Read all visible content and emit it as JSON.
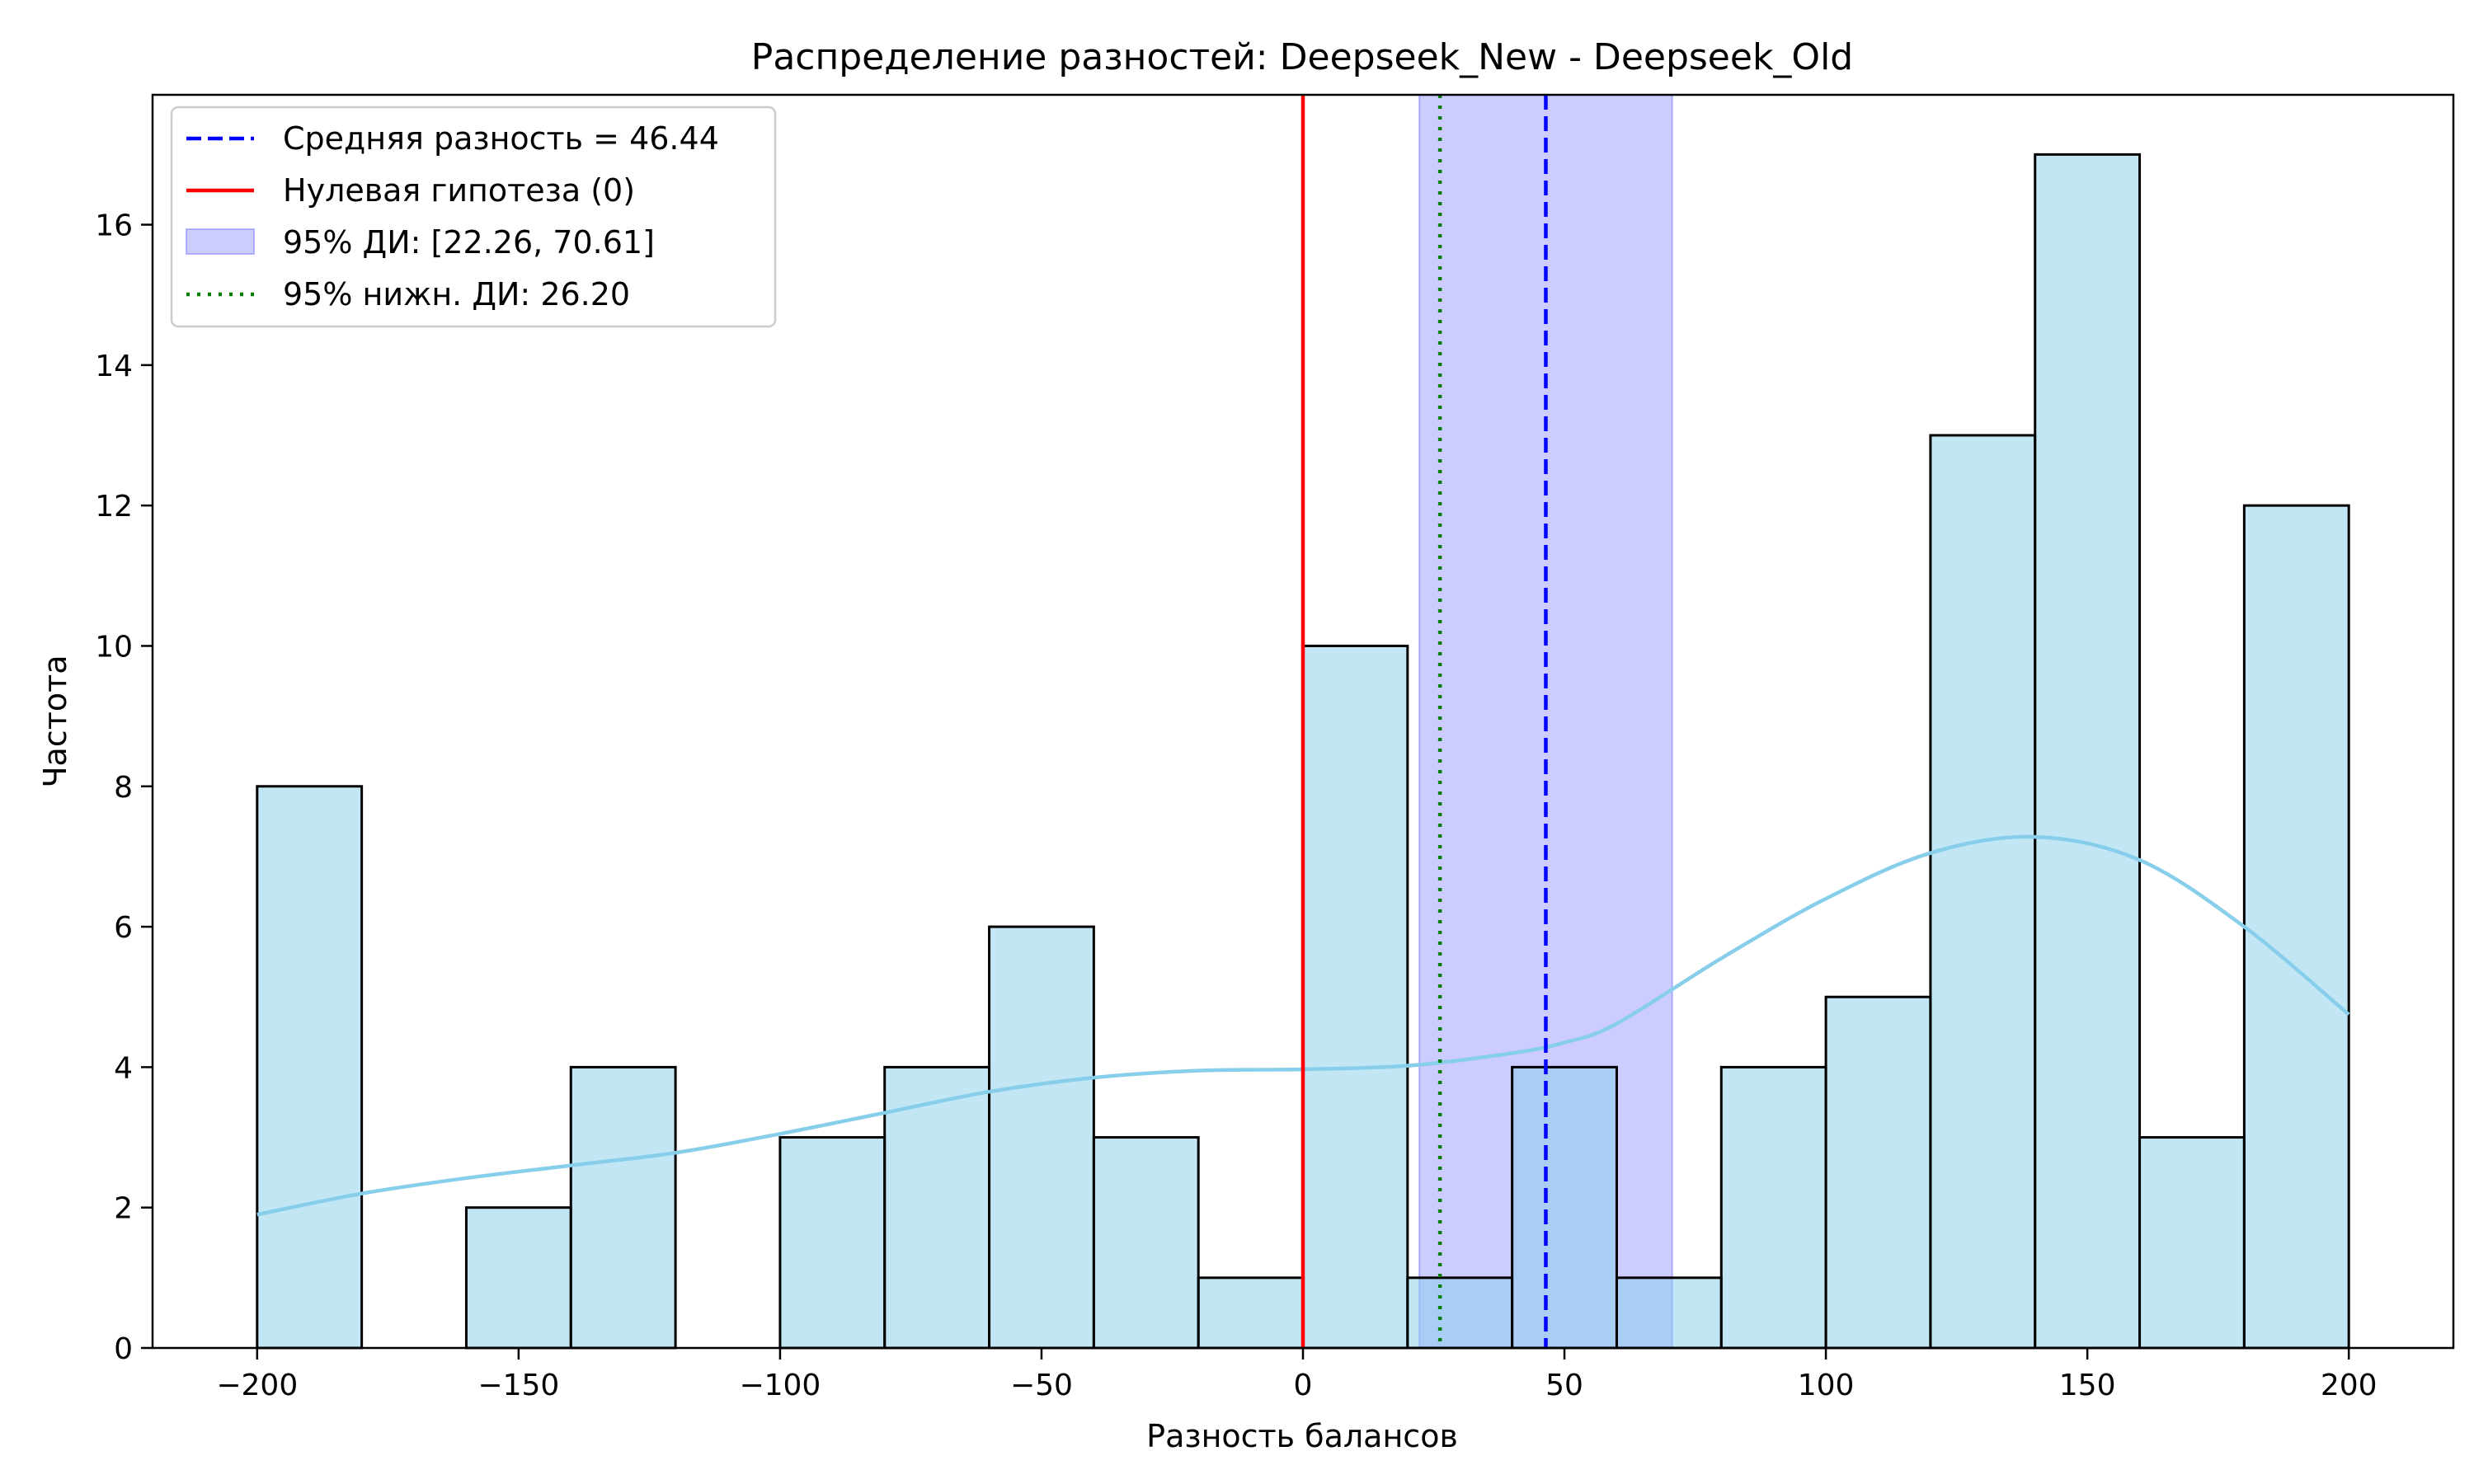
{
  "chart_data": {
    "type": "bar",
    "title": "Распределение разностей: Deepseek_New - Deepseek_Old",
    "xlabel": "Разность балансов",
    "ylabel": "Частота",
    "xlim": [
      -220,
      220
    ],
    "ylim": [
      0,
      17.85
    ],
    "xticks": [
      -200,
      -150,
      -100,
      -50,
      0,
      50,
      100,
      150,
      200
    ],
    "xtick_labels": [
      "−200",
      "−150",
      "−100",
      "−50",
      "0",
      "50",
      "100",
      "150",
      "200"
    ],
    "yticks": [
      0,
      2,
      4,
      6,
      8,
      10,
      12,
      14,
      16
    ],
    "grid": false,
    "legend_position": "top-left",
    "bin_edges": [
      -200,
      -180,
      -160,
      -140,
      -120,
      -100,
      -80,
      -60,
      -40,
      -20,
      0,
      20,
      40,
      60,
      80,
      100,
      120,
      140,
      160,
      180,
      200
    ],
    "counts": [
      8,
      0,
      2,
      4,
      0,
      3,
      4,
      6,
      3,
      1,
      10,
      1,
      4,
      1,
      4,
      5,
      13,
      17,
      3,
      12
    ],
    "kde": {
      "x": [
        -200,
        -180,
        -160,
        -140,
        -120,
        -100,
        -80,
        -60,
        -40,
        -20,
        0,
        20,
        40,
        50,
        60,
        80,
        100,
        120,
        140,
        160,
        180,
        200
      ],
      "y": [
        1.9,
        2.2,
        2.42,
        2.6,
        2.78,
        3.05,
        3.35,
        3.65,
        3.85,
        3.95,
        3.97,
        4.02,
        4.2,
        4.35,
        4.62,
        5.55,
        6.4,
        7.05,
        7.28,
        6.95,
        6.0,
        4.75
      ]
    },
    "mean_diff": 46.44,
    "null_hypothesis": 0,
    "ci95": [
      22.26,
      70.61
    ],
    "ci95_lower_one_sided": 26.2,
    "legend": [
      {
        "label": "Средняя разность = 46.44",
        "color": "#0000ff",
        "style": "dashed"
      },
      {
        "label": "Нулевая гипотеза (0)",
        "color": "#ff0000",
        "style": "solid"
      },
      {
        "label": "95% ДИ: [22.26, 70.61]",
        "color": "#8080ff",
        "style": "patch"
      },
      {
        "label": "95% нижн. ДИ: 26.20",
        "color": "#008000",
        "style": "dotted"
      }
    ],
    "colors": {
      "bar_fill": "#c2e4f3",
      "bar_edge": "#000000",
      "kde": "#87ceeb",
      "ci_fill": "#8080ff",
      "mean": "#0000ff",
      "null": "#ff0000",
      "lower": "#008000"
    }
  }
}
